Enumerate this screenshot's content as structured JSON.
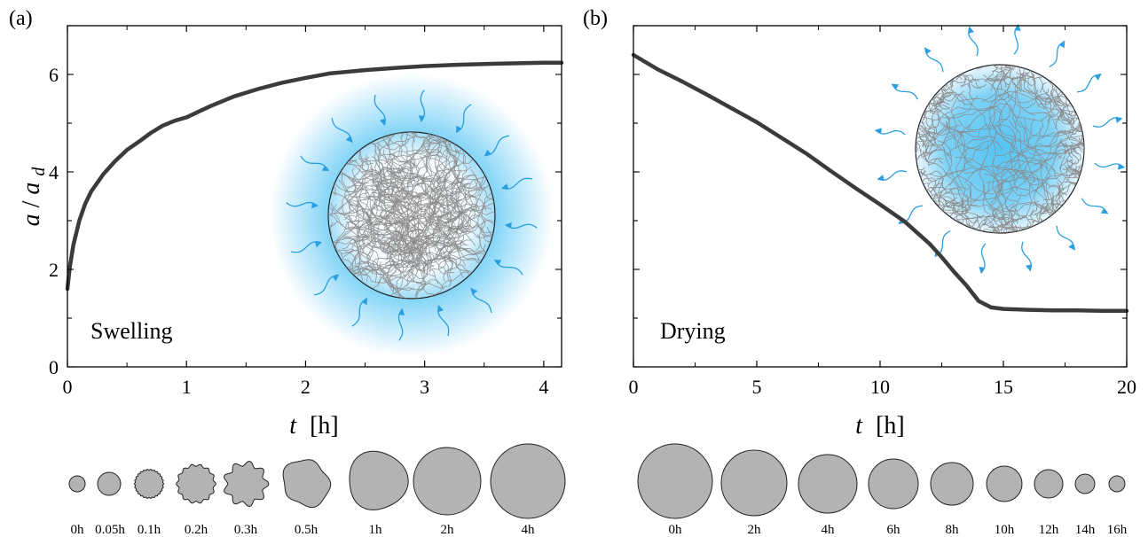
{
  "colors": {
    "curve": "#3b3b3b",
    "water": "#2a9fe0",
    "glow": "#5ec8f5",
    "droplet_fill": "#b3b3b3",
    "network": "#8a8a8a"
  },
  "chart_data": [
    {
      "type": "line",
      "panel_label": "(a)",
      "annotation": "Swelling",
      "xlabel_var": "t",
      "xlabel_unit": "[h]",
      "ylabel_var": "a",
      "ylabel_den": "a",
      "ylabel_sub": "d",
      "xlim": [
        0,
        4.15
      ],
      "ylim": [
        0,
        7
      ],
      "xticks": [
        "0",
        "1",
        "2",
        "3",
        "4"
      ],
      "yticks": [
        "0",
        "2",
        "4",
        "6"
      ],
      "series": [
        {
          "x": [
            0,
            0.02,
            0.05,
            0.1,
            0.15,
            0.2,
            0.3,
            0.4,
            0.5,
            0.6,
            0.7,
            0.8,
            0.9,
            1.0,
            1.2,
            1.4,
            1.6,
            1.8,
            2.0,
            2.2,
            2.5,
            2.8,
            3.0,
            3.3,
            3.6,
            4.0,
            4.15
          ],
          "y": [
            1.6,
            2.05,
            2.5,
            3.0,
            3.35,
            3.6,
            3.95,
            4.22,
            4.45,
            4.62,
            4.8,
            4.95,
            5.05,
            5.12,
            5.35,
            5.55,
            5.7,
            5.83,
            5.93,
            6.02,
            6.09,
            6.14,
            6.17,
            6.2,
            6.22,
            6.24,
            6.24
          ]
        }
      ],
      "droplets": [
        "0h",
        "0.05h",
        "0.1h",
        "0.2h",
        "0.3h",
        "0.5h",
        "1h",
        "2h",
        "4h"
      ]
    },
    {
      "type": "line",
      "panel_label": "(b)",
      "annotation": "Drying",
      "xlabel_var": "t",
      "xlabel_unit": "[h]",
      "xlim": [
        0,
        20
      ],
      "ylim": [
        0,
        7
      ],
      "xticks": [
        "0",
        "5",
        "10",
        "15",
        "20"
      ],
      "series": [
        {
          "x": [
            0,
            1,
            2,
            3,
            4,
            5,
            6,
            7,
            8,
            9,
            10,
            11,
            12,
            12.5,
            13,
            13.5,
            14,
            14.5,
            15,
            16,
            17,
            18,
            19,
            20
          ],
          "y": [
            6.4,
            6.1,
            5.85,
            5.58,
            5.3,
            5.02,
            4.7,
            4.38,
            4.02,
            3.67,
            3.33,
            2.98,
            2.53,
            2.25,
            1.95,
            1.67,
            1.35,
            1.22,
            1.19,
            1.17,
            1.16,
            1.16,
            1.15,
            1.15
          ]
        }
      ],
      "droplets": [
        "0h",
        "2h",
        "4h",
        "6h",
        "8h",
        "10h",
        "12h",
        "14h",
        "16h"
      ]
    }
  ]
}
